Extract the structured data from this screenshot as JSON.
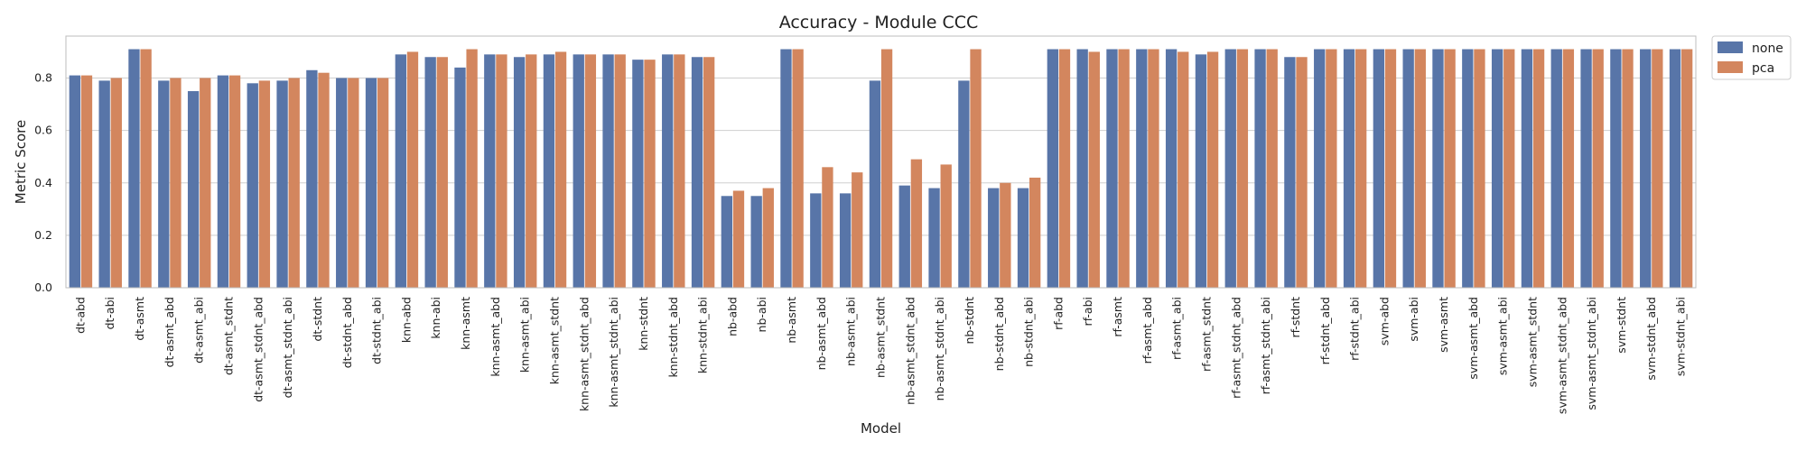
{
  "chart_data": {
    "type": "bar",
    "title": "Accuracy - Module CCC",
    "xlabel": "Model",
    "ylabel": "Metric Score",
    "ylim": [
      0,
      0.96
    ],
    "yticks": [
      "0.0",
      "0.2",
      "0.4",
      "0.6",
      "0.8"
    ],
    "grid": true,
    "legend_position": "outside top-right",
    "categories": [
      "dt-abd",
      "dt-abi",
      "dt-asmt",
      "dt-asmt_abd",
      "dt-asmt_abi",
      "dt-asmt_stdnt",
      "dt-asmt_stdnt_abd",
      "dt-asmt_stdnt_abi",
      "dt-stdnt",
      "dt-stdnt_abd",
      "dt-stdnt_abi",
      "knn-abd",
      "knn-abi",
      "knn-asmt",
      "knn-asmt_abd",
      "knn-asmt_abi",
      "knn-asmt_stdnt",
      "knn-asmt_stdnt_abd",
      "knn-asmt_stdnt_abi",
      "knn-stdnt",
      "knn-stdnt_abd",
      "knn-stdnt_abi",
      "nb-abd",
      "nb-abi",
      "nb-asmt",
      "nb-asmt_abd",
      "nb-asmt_abi",
      "nb-asmt_stdnt",
      "nb-asmt_stdnt_abd",
      "nb-asmt_stdnt_abi",
      "nb-stdnt",
      "nb-stdnt_abd",
      "nb-stdnt_abi",
      "rf-abd",
      "rf-abi",
      "rf-asmt",
      "rf-asmt_abd",
      "rf-asmt_abi",
      "rf-asmt_stdnt",
      "rf-asmt_stdnt_abd",
      "rf-asmt_stdnt_abi",
      "rf-stdnt",
      "rf-stdnt_abd",
      "rf-stdnt_abi",
      "svm-abd",
      "svm-abi",
      "svm-asmt",
      "svm-asmt_abd",
      "svm-asmt_abi",
      "svm-asmt_stdnt",
      "svm-asmt_stdnt_abd",
      "svm-asmt_stdnt_abi",
      "svm-stdnt",
      "svm-stdnt_abd",
      "svm-stdnt_abi"
    ],
    "series": [
      {
        "name": "none",
        "color": "#5875a8",
        "values": [
          0.81,
          0.79,
          0.91,
          0.79,
          0.75,
          0.81,
          0.78,
          0.79,
          0.83,
          0.8,
          0.8,
          0.89,
          0.88,
          0.84,
          0.89,
          0.88,
          0.89,
          0.89,
          0.89,
          0.87,
          0.89,
          0.88,
          0.35,
          0.35,
          0.91,
          0.36,
          0.36,
          0.79,
          0.39,
          0.38,
          0.79,
          0.38,
          0.38,
          0.91,
          0.91,
          0.91,
          0.91,
          0.91,
          0.89,
          0.91,
          0.91,
          0.88,
          0.91,
          0.91,
          0.91,
          0.91,
          0.91,
          0.91,
          0.91,
          0.91,
          0.91,
          0.91,
          0.91,
          0.91,
          0.91
        ]
      },
      {
        "name": "pca",
        "color": "#d3865e",
        "values": [
          0.81,
          0.8,
          0.91,
          0.8,
          0.8,
          0.81,
          0.79,
          0.8,
          0.82,
          0.8,
          0.8,
          0.9,
          0.88,
          0.91,
          0.89,
          0.89,
          0.9,
          0.89,
          0.89,
          0.87,
          0.89,
          0.88,
          0.37,
          0.38,
          0.91,
          0.46,
          0.44,
          0.91,
          0.49,
          0.47,
          0.91,
          0.4,
          0.42,
          0.91,
          0.9,
          0.91,
          0.91,
          0.9,
          0.9,
          0.91,
          0.91,
          0.88,
          0.91,
          0.91,
          0.91,
          0.91,
          0.91,
          0.91,
          0.91,
          0.91,
          0.91,
          0.91,
          0.91,
          0.91,
          0.91
        ]
      }
    ]
  }
}
